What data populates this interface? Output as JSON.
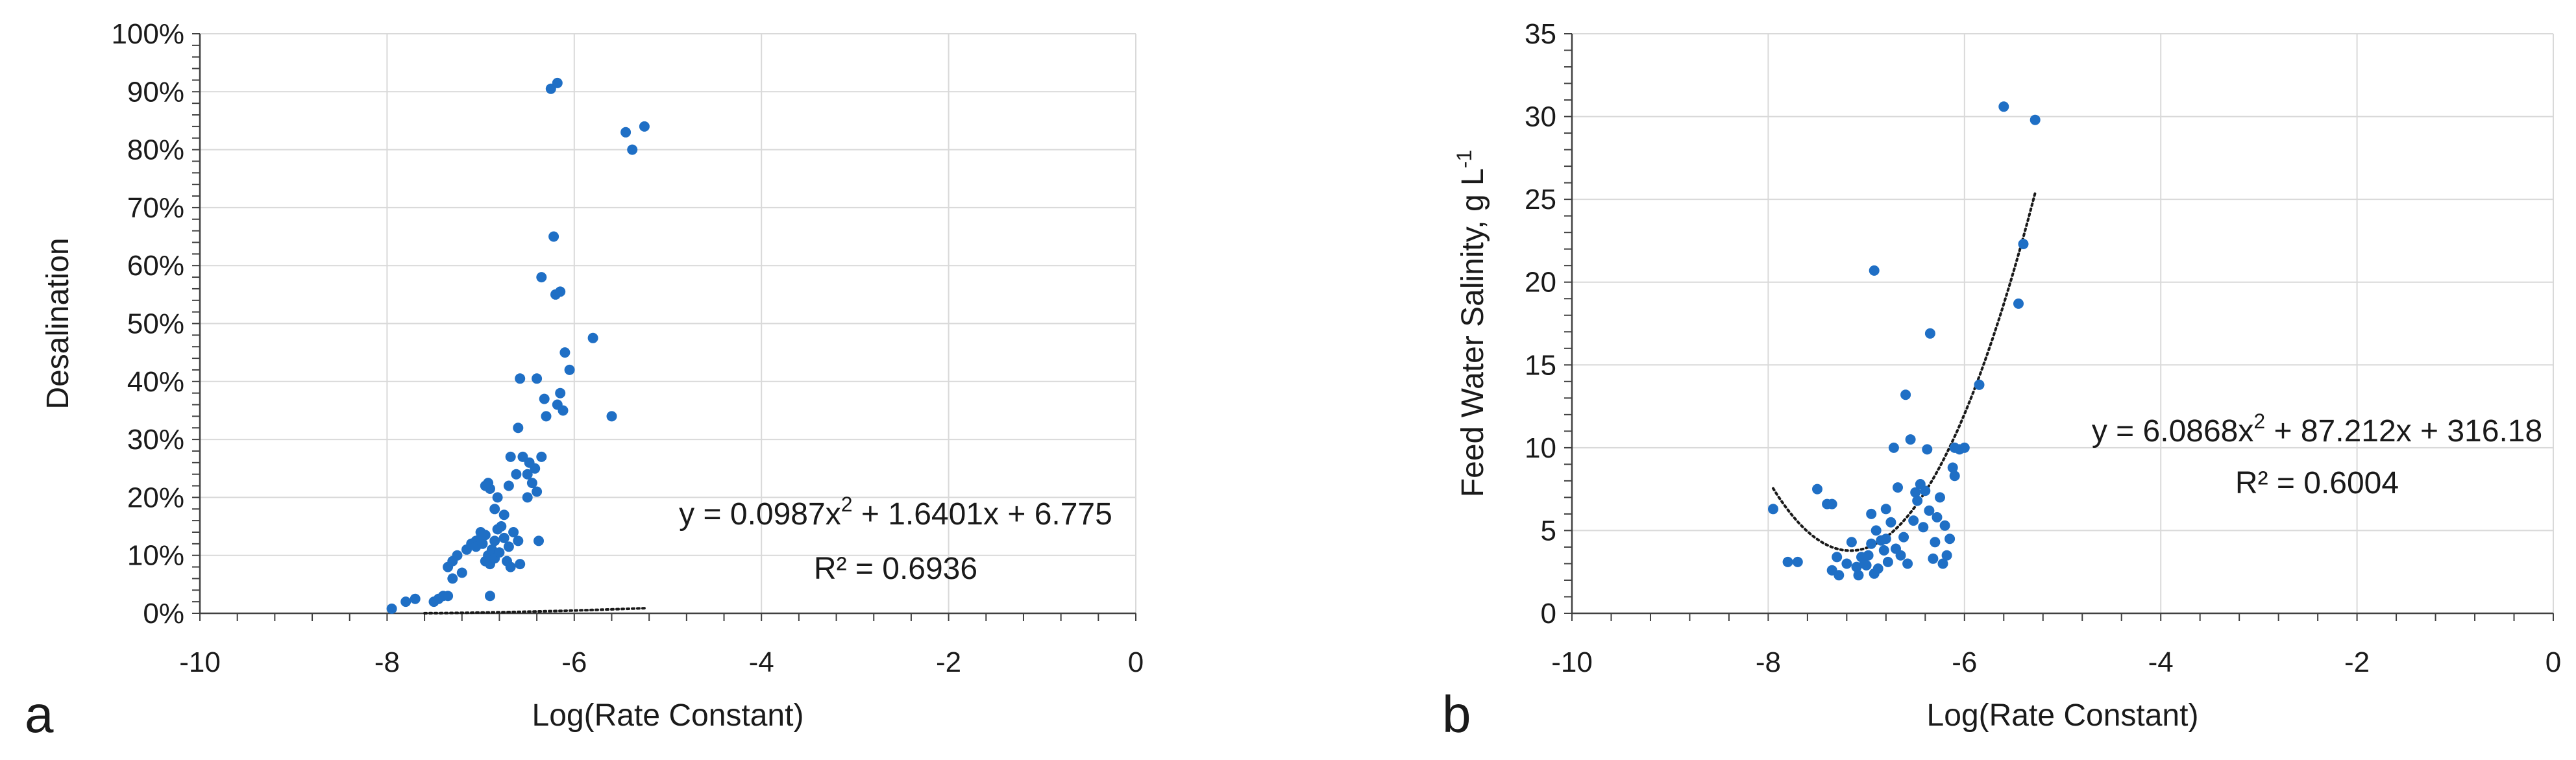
{
  "chart_data": [
    {
      "type": "scatter",
      "panel_label": "a",
      "xlabel": "Log(Rate Constant)",
      "ylabel": "Desalination",
      "xlim": [
        -10,
        0
      ],
      "ylim": [
        0,
        100
      ],
      "x_ticks": [
        -10,
        -8,
        -6,
        -4,
        -2,
        0
      ],
      "x_tick_labels": [
        "-10",
        "-8",
        "-6",
        "-4",
        "-2",
        "0"
      ],
      "y_ticks": [
        0,
        10,
        20,
        30,
        40,
        50,
        60,
        70,
        80,
        90,
        100
      ],
      "y_tick_labels": [
        "0%",
        "10%",
        "20%",
        "30%",
        "40%",
        "50%",
        "60%",
        "70%",
        "80%",
        "90%",
        "100%"
      ],
      "grid": true,
      "marker_color": "#1f6fc5",
      "trendline": {
        "type": "polynomial",
        "order": 2,
        "coefficients": [
          0.0987,
          1.6401,
          6.775
        ],
        "x_range": [
          -7.6,
          -5.25
        ],
        "equation_text": "y = 0.0987x",
        "equation_sup": "2",
        "equation_rest": " + 1.6401x + 6.775",
        "r2_text": "R² = 0.6936",
        "style": "dotted"
      },
      "points": [
        {
          "x": -7.95,
          "y": 0.8
        },
        {
          "x": -7.8,
          "y": 2.0
        },
        {
          "x": -7.7,
          "y": 2.5
        },
        {
          "x": -7.5,
          "y": 2.0
        },
        {
          "x": -7.45,
          "y": 2.5
        },
        {
          "x": -7.4,
          "y": 3.0
        },
        {
          "x": -7.35,
          "y": 3.0
        },
        {
          "x": -7.3,
          "y": 6.0
        },
        {
          "x": -7.35,
          "y": 8.0
        },
        {
          "x": -7.3,
          "y": 9.0
        },
        {
          "x": -7.25,
          "y": 10.0
        },
        {
          "x": -7.2,
          "y": 7.0
        },
        {
          "x": -7.15,
          "y": 11.0
        },
        {
          "x": -7.1,
          "y": 12.0
        },
        {
          "x": -7.05,
          "y": 12.5
        },
        {
          "x": -7.05,
          "y": 11.5
        },
        {
          "x": -7.0,
          "y": 13.0
        },
        {
          "x": -7.0,
          "y": 14.0
        },
        {
          "x": -6.98,
          "y": 12.0
        },
        {
          "x": -6.95,
          "y": 13.5
        },
        {
          "x": -6.95,
          "y": 9.0
        },
        {
          "x": -6.92,
          "y": 10.0
        },
        {
          "x": -6.9,
          "y": 8.5
        },
        {
          "x": -6.88,
          "y": 11.0
        },
        {
          "x": -6.85,
          "y": 9.5
        },
        {
          "x": -6.85,
          "y": 12.5
        },
        {
          "x": -6.82,
          "y": 14.5
        },
        {
          "x": -6.8,
          "y": 10.5
        },
        {
          "x": -6.78,
          "y": 15.0
        },
        {
          "x": -6.75,
          "y": 13.0
        },
        {
          "x": -6.72,
          "y": 9.0
        },
        {
          "x": -6.7,
          "y": 11.5
        },
        {
          "x": -6.68,
          "y": 8.0
        },
        {
          "x": -6.65,
          "y": 14.0
        },
        {
          "x": -6.6,
          "y": 12.5
        },
        {
          "x": -6.58,
          "y": 8.5
        },
        {
          "x": -6.9,
          "y": 3.0
        },
        {
          "x": -6.95,
          "y": 22.0
        },
        {
          "x": -6.9,
          "y": 21.5
        },
        {
          "x": -6.92,
          "y": 22.5
        },
        {
          "x": -6.85,
          "y": 18.0
        },
        {
          "x": -6.82,
          "y": 20.0
        },
        {
          "x": -6.75,
          "y": 17.0
        },
        {
          "x": -6.7,
          "y": 22.0
        },
        {
          "x": -6.68,
          "y": 27.0
        },
        {
          "x": -6.62,
          "y": 24.0
        },
        {
          "x": -6.6,
          "y": 32.0
        },
        {
          "x": -6.58,
          "y": 40.5
        },
        {
          "x": -6.55,
          "y": 27.0
        },
        {
          "x": -6.5,
          "y": 24.0
        },
        {
          "x": -6.5,
          "y": 20.0
        },
        {
          "x": -6.48,
          "y": 26.0
        },
        {
          "x": -6.45,
          "y": 22.5
        },
        {
          "x": -6.42,
          "y": 25.0
        },
        {
          "x": -6.4,
          "y": 21.0
        },
        {
          "x": -6.38,
          "y": 12.5
        },
        {
          "x": -6.35,
          "y": 27.0
        },
        {
          "x": -6.4,
          "y": 40.5
        },
        {
          "x": -6.32,
          "y": 37.0
        },
        {
          "x": -6.3,
          "y": 34.0
        },
        {
          "x": -6.25,
          "y": 90.5
        },
        {
          "x": -6.18,
          "y": 91.5
        },
        {
          "x": -6.22,
          "y": 65.0
        },
        {
          "x": -6.35,
          "y": 58.0
        },
        {
          "x": -6.2,
          "y": 55.0
        },
        {
          "x": -6.15,
          "y": 55.5
        },
        {
          "x": -6.18,
          "y": 36.0
        },
        {
          "x": -6.15,
          "y": 38.0
        },
        {
          "x": -6.12,
          "y": 35.0
        },
        {
          "x": -6.1,
          "y": 45.0
        },
        {
          "x": -6.05,
          "y": 42.0
        },
        {
          "x": -5.8,
          "y": 47.5
        },
        {
          "x": -5.6,
          "y": 34.0
        },
        {
          "x": -5.45,
          "y": 83.0
        },
        {
          "x": -5.38,
          "y": 80.0
        },
        {
          "x": -5.25,
          "y": 84.0
        }
      ]
    },
    {
      "type": "scatter",
      "panel_label": "b",
      "xlabel": "Log(Rate Constant)",
      "ylabel": "Feed Water Salinity, g L",
      "ylabel_sup": "-1",
      "xlim": [
        -10,
        0
      ],
      "ylim": [
        0,
        35
      ],
      "x_ticks": [
        -10,
        -8,
        -6,
        -4,
        -2,
        0
      ],
      "x_tick_labels": [
        "-10",
        "-8",
        "-6",
        "-4",
        "-2",
        "0"
      ],
      "y_ticks": [
        0,
        5,
        10,
        15,
        20,
        25,
        30,
        35
      ],
      "y_tick_labels": [
        "0",
        "5",
        "10",
        "15",
        "20",
        "25",
        "30",
        "35"
      ],
      "grid": true,
      "marker_color": "#1f6fc5",
      "trendline": {
        "type": "polynomial",
        "order": 2,
        "coefficients": [
          6.0868,
          87.212,
          316.18
        ],
        "x_range": [
          -7.95,
          -5.28
        ],
        "equation_text": "y = 6.0868x",
        "equation_sup": "2",
        "equation_rest": " + 87.212x + 316.18",
        "r2_text": "R² = 0.6004",
        "style": "dotted"
      },
      "points": [
        {
          "x": -7.95,
          "y": 6.3
        },
        {
          "x": -7.8,
          "y": 3.1
        },
        {
          "x": -7.7,
          "y": 3.1
        },
        {
          "x": -7.5,
          "y": 7.5
        },
        {
          "x": -7.4,
          "y": 6.6
        },
        {
          "x": -7.35,
          "y": 6.6
        },
        {
          "x": -7.35,
          "y": 2.6
        },
        {
          "x": -7.3,
          "y": 3.4
        },
        {
          "x": -7.28,
          "y": 2.3
        },
        {
          "x": -7.2,
          "y": 3.0
        },
        {
          "x": -7.15,
          "y": 4.3
        },
        {
          "x": -7.1,
          "y": 2.8
        },
        {
          "x": -7.08,
          "y": 2.3
        },
        {
          "x": -7.05,
          "y": 3.4
        },
        {
          "x": -7.02,
          "y": 3.0
        },
        {
          "x": -7.0,
          "y": 2.9
        },
        {
          "x": -6.98,
          "y": 3.5
        },
        {
          "x": -6.95,
          "y": 4.2
        },
        {
          "x": -6.95,
          "y": 6.0
        },
        {
          "x": -6.92,
          "y": 2.4
        },
        {
          "x": -6.9,
          "y": 5.0
        },
        {
          "x": -6.88,
          "y": 2.7
        },
        {
          "x": -6.85,
          "y": 4.4
        },
        {
          "x": -6.82,
          "y": 3.8
        },
        {
          "x": -6.8,
          "y": 6.3
        },
        {
          "x": -6.8,
          "y": 4.5
        },
        {
          "x": -6.78,
          "y": 3.1
        },
        {
          "x": -6.75,
          "y": 5.5
        },
        {
          "x": -6.72,
          "y": 10.0
        },
        {
          "x": -6.7,
          "y": 3.9
        },
        {
          "x": -6.68,
          "y": 7.6
        },
        {
          "x": -6.65,
          "y": 3.5
        },
        {
          "x": -6.62,
          "y": 4.6
        },
        {
          "x": -6.6,
          "y": 13.2
        },
        {
          "x": -6.58,
          "y": 3.0
        },
        {
          "x": -6.55,
          "y": 10.5
        },
        {
          "x": -6.52,
          "y": 5.6
        },
        {
          "x": -6.5,
          "y": 7.3
        },
        {
          "x": -6.48,
          "y": 6.8
        },
        {
          "x": -6.45,
          "y": 7.8
        },
        {
          "x": -6.42,
          "y": 5.2
        },
        {
          "x": -6.4,
          "y": 7.4
        },
        {
          "x": -6.38,
          "y": 9.9
        },
        {
          "x": -6.36,
          "y": 6.2
        },
        {
          "x": -6.35,
          "y": 16.9
        },
        {
          "x": -6.32,
          "y": 3.3
        },
        {
          "x": -6.3,
          "y": 4.3
        },
        {
          "x": -6.28,
          "y": 5.8
        },
        {
          "x": -6.25,
          "y": 7.0
        },
        {
          "x": -6.22,
          "y": 3.0
        },
        {
          "x": -6.2,
          "y": 5.3
        },
        {
          "x": -6.18,
          "y": 3.5
        },
        {
          "x": -6.15,
          "y": 4.5
        },
        {
          "x": -6.12,
          "y": 8.8
        },
        {
          "x": -6.1,
          "y": 8.3
        },
        {
          "x": -6.1,
          "y": 10.0
        },
        {
          "x": -6.05,
          "y": 9.9
        },
        {
          "x": -6.0,
          "y": 10.0
        },
        {
          "x": -6.92,
          "y": 20.7
        },
        {
          "x": -5.85,
          "y": 13.8
        },
        {
          "x": -5.6,
          "y": 30.6
        },
        {
          "x": -5.45,
          "y": 18.7
        },
        {
          "x": -5.4,
          "y": 22.3
        },
        {
          "x": -5.28,
          "y": 29.8
        }
      ]
    }
  ]
}
